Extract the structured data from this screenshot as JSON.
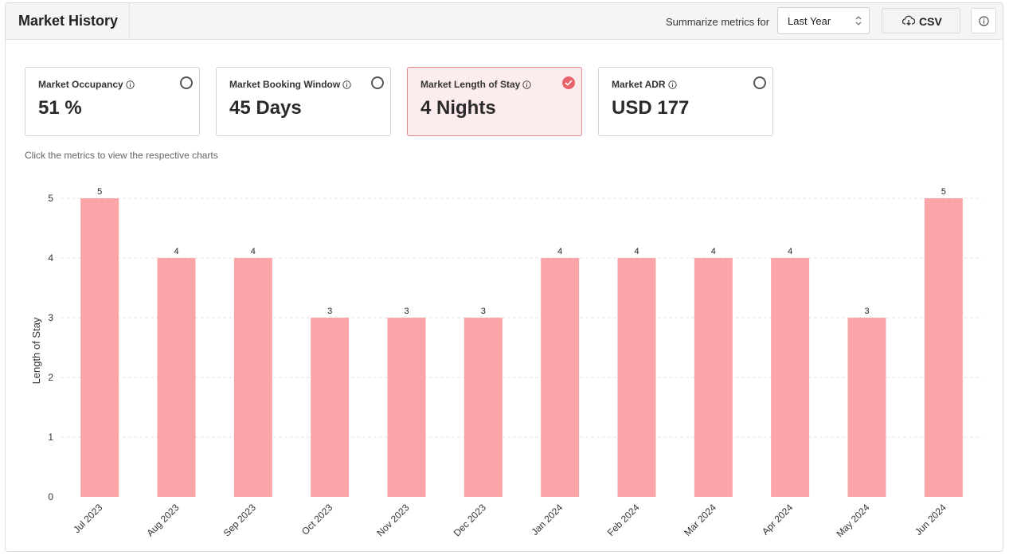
{
  "header": {
    "title": "Market History",
    "summarize_label": "Summarize metrics for",
    "period_select_value": "Last Year",
    "csv_label": "CSV"
  },
  "metrics": [
    {
      "label": "Market Occupancy",
      "value": "51 %",
      "selected": false
    },
    {
      "label": "Market Booking Window",
      "value": "45 Days",
      "selected": false
    },
    {
      "label": "Market Length of Stay",
      "value": "4 Nights",
      "selected": true
    },
    {
      "label": "Market ADR",
      "value": "USD 177",
      "selected": false
    }
  ],
  "hint": "Click the metrics to view the respective charts",
  "colors": {
    "bar": "#fba5a9",
    "accent": "#e8636e",
    "selected_card_bg": "#fdeced"
  },
  "chart_data": {
    "type": "bar",
    "categories": [
      "Jul 2023",
      "Aug 2023",
      "Sep 2023",
      "Oct 2023",
      "Nov 2023",
      "Dec 2023",
      "Jan 2024",
      "Feb 2024",
      "Mar 2024",
      "Apr 2024",
      "May 2024",
      "Jun 2024"
    ],
    "values": [
      5,
      4,
      4,
      3,
      3,
      3,
      4,
      4,
      4,
      4,
      3,
      5
    ],
    "ylabel": "Length of Stay",
    "ylim": [
      0,
      5
    ],
    "yticks": [
      0,
      1,
      2,
      3,
      4,
      5
    ],
    "grid": true,
    "data_labels": true
  }
}
